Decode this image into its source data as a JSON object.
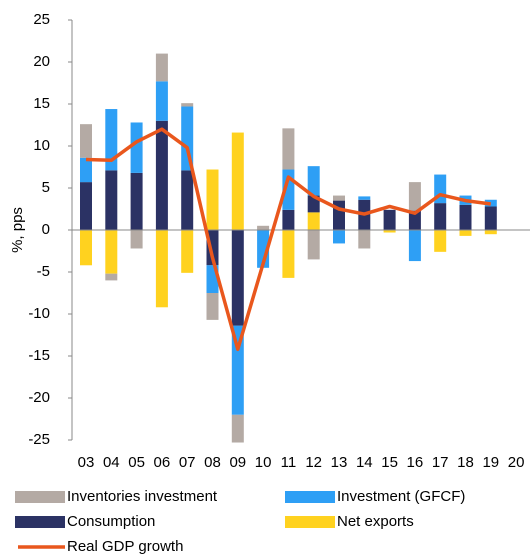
{
  "chart_data": {
    "type": "bar",
    "stacked": true,
    "y_label": "%, pps",
    "categories": [
      "03",
      "04",
      "05",
      "06",
      "07",
      "08",
      "09",
      "10",
      "11",
      "12",
      "13",
      "14",
      "15",
      "16",
      "17",
      "18",
      "19",
      "20"
    ],
    "ylim": [
      -25,
      25
    ],
    "yticks": [
      25,
      20,
      15,
      10,
      5,
      0,
      -5,
      -10,
      -15,
      -20,
      -25
    ],
    "series": [
      {
        "name": "Inventories investment",
        "color": "#b4aaa4",
        "values": [
          4.0,
          -0.8,
          -2.2,
          3.3,
          0.4,
          -3.2,
          -3.3,
          0.5,
          4.9,
          -3.5,
          0.6,
          -2.2,
          null,
          3.4,
          null,
          null,
          null,
          null
        ]
      },
      {
        "name": "Investment (GFCF)",
        "color": "#2e9ff5",
        "values": [
          2.9,
          7.3,
          6.0,
          4.7,
          7.6,
          -3.3,
          -10.6,
          -4.5,
          4.8,
          3.5,
          -1.6,
          0.4,
          null,
          -3.7,
          3.4,
          1.1,
          0.8,
          null
        ]
      },
      {
        "name": "Consumption",
        "color": "#2b3264",
        "values": [
          5.7,
          7.1,
          6.8,
          13.0,
          7.1,
          -4.2,
          -11.4,
          null,
          2.4,
          2.0,
          3.5,
          3.6,
          2.4,
          2.3,
          3.2,
          3.0,
          2.8,
          null
        ]
      },
      {
        "name": "Net exports",
        "color": "#ffd21f",
        "values": [
          -4.2,
          -5.2,
          null,
          -9.2,
          -5.1,
          7.2,
          11.6,
          null,
          -5.7,
          2.1,
          null,
          null,
          -0.3,
          null,
          -2.6,
          -0.7,
          -0.5,
          null
        ]
      },
      {
        "name": "Real GDP growth",
        "type": "line",
        "color": "#e9571d",
        "values": [
          8.4,
          8.3,
          10.5,
          12.0,
          9.8,
          -3.3,
          -14.2,
          -4.0,
          6.3,
          4.0,
          2.5,
          1.9,
          2.8,
          2.0,
          4.2,
          3.5,
          3.1,
          null
        ]
      }
    ]
  }
}
